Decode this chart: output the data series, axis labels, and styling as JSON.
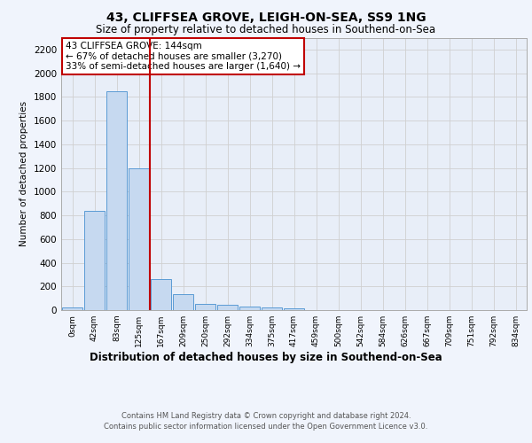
{
  "title": "43, CLIFFSEA GROVE, LEIGH-ON-SEA, SS9 1NG",
  "subtitle": "Size of property relative to detached houses in Southend-on-Sea",
  "xlabel": "Distribution of detached houses by size in Southend-on-Sea",
  "ylabel": "Number of detached properties",
  "footer_line1": "Contains HM Land Registry data © Crown copyright and database right 2024.",
  "footer_line2": "Contains public sector information licensed under the Open Government Licence v3.0.",
  "annotation_title": "43 CLIFFSEA GROVE: 144sqm",
  "annotation_line1": "← 67% of detached houses are smaller (3,270)",
  "annotation_line2": "33% of semi-detached houses are larger (1,640) →",
  "bar_labels": [
    "0sqm",
    "42sqm",
    "83sqm",
    "125sqm",
    "167sqm",
    "209sqm",
    "250sqm",
    "292sqm",
    "334sqm",
    "375sqm",
    "417sqm",
    "459sqm",
    "500sqm",
    "542sqm",
    "584sqm",
    "626sqm",
    "667sqm",
    "709sqm",
    "751sqm",
    "792sqm",
    "834sqm"
  ],
  "bar_values": [
    25,
    840,
    1850,
    1200,
    260,
    135,
    50,
    45,
    30,
    20,
    15,
    0,
    0,
    0,
    0,
    0,
    0,
    0,
    0,
    0,
    0
  ],
  "bar_color": "#c6d9f0",
  "bar_edge_color": "#5b9bd5",
  "vline_x": 3.5,
  "vline_color": "#c00000",
  "ylim": [
    0,
    2300
  ],
  "yticks": [
    0,
    200,
    400,
    600,
    800,
    1000,
    1200,
    1400,
    1600,
    1800,
    2000,
    2200
  ],
  "grid_color": "#d0d0d0",
  "background_color": "#f0f4fc",
  "plot_bg_color": "#e8eef8"
}
